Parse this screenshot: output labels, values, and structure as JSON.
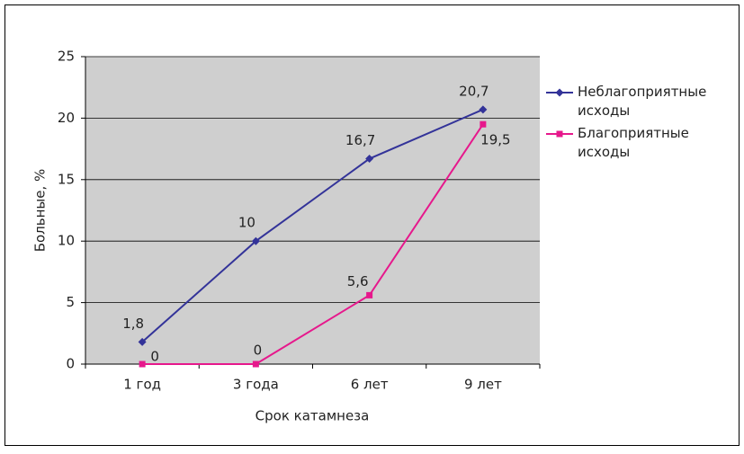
{
  "chart_data": {
    "type": "line",
    "categories": [
      "1 год",
      "3 года",
      "6 лет",
      "9 лет"
    ],
    "series": [
      {
        "name": "Неблагоприятные исходы",
        "color": "#333399",
        "marker": "diamond",
        "values": [
          1.8,
          10,
          16.7,
          20.7
        ],
        "value_labels": [
          "1,8",
          "10",
          "16,7",
          "20,7"
        ]
      },
      {
        "name": "Благоприятные исходы",
        "color": "#e6188c",
        "marker": "square",
        "values": [
          0,
          0,
          5.6,
          19.5
        ],
        "value_labels": [
          "0",
          "0",
          "5,6",
          "19,5"
        ]
      }
    ],
    "ylabel": "Больные, %",
    "xlabel": "Срок катамнеза",
    "ylim": [
      0,
      25
    ],
    "yticks": [
      0,
      5,
      10,
      15,
      20,
      25
    ],
    "grid": true,
    "legend": "right"
  }
}
